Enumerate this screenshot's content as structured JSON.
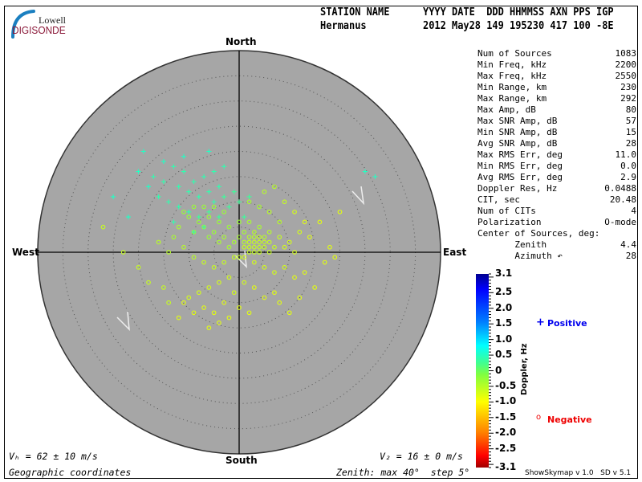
{
  "logo": {
    "line1": "Lowell",
    "line2": "DIGISONDE",
    "brand_color": "#8b1a3a",
    "swoosh_color": "#1a7fc0"
  },
  "header": {
    "row1": [
      "STATION NAME",
      "YYYY DATE  DDD HHMMSS AXN PPS IGP"
    ],
    "row2": [
      "Hermanus",
      "2012 May28 149 195230 417 100 -8E"
    ]
  },
  "stats": [
    {
      "label": "Num of Sources",
      "value": "1083"
    },
    {
      "label": "Min Freq, kHz",
      "value": "2200"
    },
    {
      "label": "Max Freq, kHz",
      "value": "2550"
    },
    {
      "label": "Min Range, km",
      "value": "230"
    },
    {
      "label": "Max Range, km",
      "value": "292"
    },
    {
      "label": "Max Amp, dB",
      "value": "80"
    },
    {
      "label": "Max SNR Amp, dB",
      "value": "57"
    },
    {
      "label": "Min SNR Amp, dB",
      "value": "15"
    },
    {
      "label": "Avg SNR Amp, dB",
      "value": "28"
    },
    {
      "label": "Max RMS Err, deg",
      "value": "11.0"
    },
    {
      "label": "Min RMS Err, deg",
      "value": "0.0"
    },
    {
      "label": "Avg RMS Err, deg",
      "value": "2.9"
    },
    {
      "label": "Doppler Res, Hz",
      "value": "0.0488"
    },
    {
      "label": "CIT, sec",
      "value": "20.48"
    },
    {
      "label": "Num of CITs",
      "value": "4"
    },
    {
      "label": "Polarization",
      "value": "O-mode"
    },
    {
      "label": "Center of Sources, deg:",
      "value": ""
    },
    {
      "label": "       Zenith",
      "value": "4.4"
    },
    {
      "label": "       Azimuth ↶",
      "value": "28"
    }
  ],
  "footer": {
    "vh": "Vₕ = 62 ± 10 m/s",
    "vz": "V₂ = 16 ± 0 m/s",
    "coords": "Geographic coordinates",
    "zenith": "Zenith: max 40°  step 5°",
    "version": "ShowSkymap v 1.0   SD v 5.1"
  },
  "legend": {
    "positive": "Positive",
    "negative": "Negative",
    "positive_color": "#0000ee",
    "negative_color": "#ee0000",
    "positive_symbol": "+",
    "negative_symbol": "o"
  },
  "chart_data": {
    "type": "scatter",
    "projection": "polar skymap",
    "compass": {
      "north": "North",
      "south": "South",
      "east": "East",
      "west": "West"
    },
    "zenith_max_deg": 40,
    "zenith_step_deg": 5,
    "colorbar": {
      "label": "Doppler, Hz",
      "range": [
        -3.1,
        3.1
      ],
      "ticks": [
        "3.1",
        "2.5",
        "2.0",
        "1.5",
        "1.0",
        "0.5",
        "0",
        "-0.5",
        "-1.0",
        "-1.5",
        "-2.0",
        "-2.5",
        "-3.1"
      ]
    },
    "point_format": [
      "east_deg",
      "north_deg",
      "doppler_hz"
    ],
    "positive_points": [
      [
        -17,
        15,
        0.4
      ],
      [
        -15,
        14,
        0.4
      ],
      [
        -13,
        17,
        0.4
      ],
      [
        -12,
        13,
        0.4
      ],
      [
        -11,
        16,
        0.4
      ],
      [
        -10,
        12,
        0.4
      ],
      [
        -9,
        14,
        0.4
      ],
      [
        -8,
        11,
        0.4
      ],
      [
        -7,
        15,
        0.4
      ],
      [
        -6,
        12,
        0.4
      ],
      [
        -5,
        10,
        0.4
      ],
      [
        -4,
        13,
        0.4
      ],
      [
        -3,
        11,
        0.3
      ],
      [
        -2,
        9,
        0.3
      ],
      [
        -1,
        12,
        0.3
      ],
      [
        0,
        10,
        0.3
      ],
      [
        -14,
        10,
        0.4
      ],
      [
        -12,
        9,
        0.4
      ],
      [
        -10,
        8,
        0.4
      ],
      [
        -8,
        7,
        0.3
      ],
      [
        -6,
        8,
        0.3
      ],
      [
        -4,
        7,
        0.3
      ],
      [
        -16,
        11,
        0.4
      ],
      [
        -18,
        13,
        0.5
      ],
      [
        -20,
        16,
        0.5
      ],
      [
        -25,
        11,
        0.5
      ],
      [
        -22,
        7,
        0.5
      ],
      [
        -11,
        19,
        0.5
      ],
      [
        -6,
        20,
        0.5
      ],
      [
        -3,
        17,
        0.4
      ],
      [
        1,
        7,
        0.3
      ],
      [
        -7,
        5,
        0.3
      ],
      [
        -9,
        4,
        0.3
      ],
      [
        -13,
        6,
        0.4
      ],
      [
        25,
        16,
        0.5
      ],
      [
        27,
        15,
        0.5
      ],
      [
        2,
        11,
        0.3
      ],
      [
        -5,
        16,
        0.4
      ],
      [
        -15,
        18,
        0.5
      ],
      [
        -19,
        20,
        0.5
      ]
    ],
    "negative_points": [
      [
        1,
        2,
        -0.5
      ],
      [
        2,
        3,
        -0.5
      ],
      [
        3,
        1,
        -0.6
      ],
      [
        4,
        2,
        -0.6
      ],
      [
        5,
        1,
        -0.6
      ],
      [
        3,
        3,
        -0.5
      ],
      [
        2,
        0,
        -0.6
      ],
      [
        4,
        0,
        -0.6
      ],
      [
        6,
        2,
        -0.6
      ],
      [
        7,
        1,
        -0.6
      ],
      [
        5,
        3,
        -0.5
      ],
      [
        1,
        4,
        -0.4
      ],
      [
        0,
        3,
        -0.4
      ],
      [
        -1,
        2,
        -0.4
      ],
      [
        -2,
        1,
        -0.4
      ],
      [
        -3,
        3,
        -0.4
      ],
      [
        -4,
        2,
        -0.4
      ],
      [
        -5,
        4,
        -0.3
      ],
      [
        -6,
        3,
        -0.3
      ],
      [
        -7,
        5,
        -0.3
      ],
      [
        -8,
        6,
        -0.3
      ],
      [
        -9,
        4,
        -0.3
      ],
      [
        -10,
        7,
        -0.3
      ],
      [
        -6,
        7,
        -0.3
      ],
      [
        -4,
        6,
        -0.3
      ],
      [
        -2,
        5,
        -0.3
      ],
      [
        0,
        6,
        -0.3
      ],
      [
        2,
        6,
        -0.4
      ],
      [
        4,
        5,
        -0.4
      ],
      [
        6,
        4,
        -0.5
      ],
      [
        8,
        3,
        -0.6
      ],
      [
        9,
        1,
        -0.7
      ],
      [
        10,
        2,
        -0.7
      ],
      [
        11,
        0,
        -0.7
      ],
      [
        12,
        4,
        -0.7
      ],
      [
        8,
        6,
        -0.5
      ],
      [
        6,
        8,
        -0.5
      ],
      [
        4,
        9,
        -0.4
      ],
      [
        2,
        10,
        -0.4
      ],
      [
        5,
        12,
        -0.5
      ],
      [
        7,
        13,
        -0.5
      ],
      [
        9,
        10,
        -0.6
      ],
      [
        11,
        8,
        -0.7
      ],
      [
        13,
        6,
        -0.8
      ],
      [
        14,
        3,
        -0.8
      ],
      [
        -3,
        8,
        -0.3
      ],
      [
        -5,
        9,
        -0.3
      ],
      [
        -7,
        9,
        -0.3
      ],
      [
        -9,
        9,
        -0.3
      ],
      [
        -11,
        8,
        -0.3
      ],
      [
        -12,
        5,
        -0.4
      ],
      [
        -13,
        3,
        -0.4
      ],
      [
        -14,
        0,
        -0.5
      ],
      [
        -16,
        2,
        -0.5
      ],
      [
        -11,
        1,
        -0.5
      ],
      [
        -9,
        -1,
        -0.5
      ],
      [
        -7,
        -2,
        -0.6
      ],
      [
        -5,
        -3,
        -0.6
      ],
      [
        -3,
        -2,
        -0.6
      ],
      [
        -1,
        -1,
        -0.6
      ],
      [
        1,
        -1,
        -0.7
      ],
      [
        3,
        -2,
        -0.7
      ],
      [
        5,
        -3,
        -0.7
      ],
      [
        7,
        -4,
        -0.7
      ],
      [
        9,
        -3,
        -0.7
      ],
      [
        11,
        -5,
        -0.8
      ],
      [
        13,
        -4,
        -0.8
      ],
      [
        -2,
        -5,
        -0.7
      ],
      [
        -4,
        -6,
        -0.7
      ],
      [
        -6,
        -7,
        -0.7
      ],
      [
        -8,
        -8,
        -0.7
      ],
      [
        -10,
        -9,
        -0.7
      ],
      [
        -1,
        -8,
        -0.7
      ],
      [
        1,
        -6,
        -0.7
      ],
      [
        3,
        -7,
        -0.8
      ],
      [
        5,
        -9,
        -0.8
      ],
      [
        7,
        -8,
        -0.8
      ],
      [
        -3,
        -10,
        -0.8
      ],
      [
        -5,
        -12,
        -0.8
      ],
      [
        -7,
        -11,
        -0.8
      ],
      [
        0,
        -11,
        -0.8
      ],
      [
        2,
        -12,
        -0.8
      ],
      [
        -9,
        -12,
        -0.8
      ],
      [
        -11,
        -10,
        -0.8
      ],
      [
        -12,
        -13,
        -0.8
      ],
      [
        -4,
        -14,
        -0.8
      ],
      [
        -2,
        -13,
        -0.8
      ],
      [
        8,
        -10,
        -0.8
      ],
      [
        12,
        -9,
        -0.8
      ],
      [
        15,
        -7,
        -0.8
      ],
      [
        17,
        -2,
        -0.8
      ],
      [
        18,
        1,
        -0.8
      ],
      [
        16,
        6,
        -0.8
      ],
      [
        19,
        -1,
        -0.8
      ],
      [
        -20,
        -3,
        -0.6
      ],
      [
        -23,
        0,
        -0.6
      ],
      [
        -27,
        5,
        -0.6
      ],
      [
        -18,
        -6,
        -0.6
      ],
      [
        10,
        -12,
        -0.8
      ],
      [
        -6,
        -15,
        -0.8
      ],
      [
        0,
        -1,
        -0.6
      ],
      [
        2,
        1,
        -0.6
      ],
      [
        3,
        2,
        -0.6
      ],
      [
        4,
        3,
        -0.6
      ],
      [
        1,
        1,
        -0.6
      ],
      [
        5,
        2,
        -0.6
      ],
      [
        6,
        0,
        -0.6
      ],
      [
        3,
        0,
        -0.6
      ],
      [
        4,
        1,
        -0.6
      ],
      [
        2,
        2,
        -0.6
      ],
      [
        3,
        4,
        -0.5
      ],
      [
        -15,
        -7,
        -0.6
      ],
      [
        -14,
        -10,
        -0.6
      ],
      [
        20,
        8,
        -0.8
      ]
    ]
  }
}
